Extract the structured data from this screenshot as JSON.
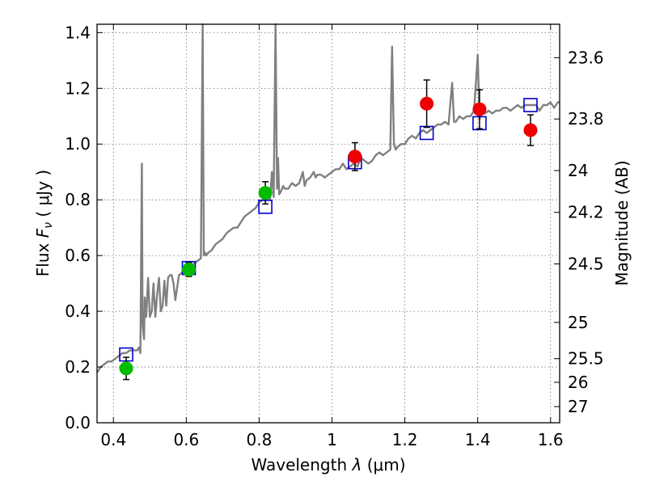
{
  "chart_data": {
    "type": "scatter",
    "xlabel": "Wavelength",
    "xlabel_symbol": "λ",
    "xlabel_unit": "(μm)",
    "ylabel": "Flux",
    "ylabel_symbol": "F",
    "ylabel_subscript": "ν",
    "ylabel_unit": "( μJy )",
    "y2label": "Magnitude (AB)",
    "xlim": [
      0.355,
      1.625
    ],
    "ylim": [
      0.0,
      1.43
    ],
    "x_ticks": [
      0.4,
      0.6,
      0.8,
      1.0,
      1.2,
      1.4,
      1.6
    ],
    "x_tick_labels": [
      "0.4",
      "0.6",
      "0.8",
      "1",
      "1.2",
      "1.4",
      "1.6"
    ],
    "y_ticks": [
      0.0,
      0.2,
      0.4,
      0.6,
      0.8,
      1.0,
      1.2,
      1.4
    ],
    "y_tick_labels": [
      "0.0",
      "0.2",
      "0.4",
      "0.6",
      "0.8",
      "1.0",
      "1.2",
      "1.4"
    ],
    "y2_ticks": [
      {
        "label": "23.6",
        "flux": 1.31
      },
      {
        "label": "23.8",
        "flux": 1.09
      },
      {
        "label": "24",
        "flux": 0.905
      },
      {
        "label": "24.2",
        "flux": 0.755
      },
      {
        "label": "24.5",
        "flux": 0.57
      },
      {
        "label": "25",
        "flux": 0.36
      },
      {
        "label": "25.5",
        "flux": 0.23
      },
      {
        "label": "26",
        "flux": 0.145
      },
      {
        "label": "27",
        "flux": 0.058
      }
    ],
    "grid": true,
    "colors": {
      "spectrum": "#808080",
      "model_box": "#0000cc",
      "green": "#00bb00",
      "red": "#ee0000",
      "error_bar": "#000000"
    },
    "series": [
      {
        "name": "Model spectrum",
        "type": "line",
        "x": [
          0.355,
          0.365,
          0.375,
          0.385,
          0.395,
          0.405,
          0.415,
          0.425,
          0.435,
          0.445,
          0.455,
          0.465,
          0.47,
          0.474,
          0.478,
          0.48,
          0.484,
          0.486,
          0.49,
          0.495,
          0.5,
          0.505,
          0.51,
          0.515,
          0.52,
          0.525,
          0.53,
          0.535,
          0.54,
          0.545,
          0.55,
          0.555,
          0.56,
          0.565,
          0.57,
          0.58,
          0.59,
          0.6,
          0.61,
          0.62,
          0.63,
          0.64,
          0.645,
          0.648,
          0.652,
          0.655,
          0.66,
          0.67,
          0.68,
          0.69,
          0.7,
          0.71,
          0.72,
          0.73,
          0.74,
          0.75,
          0.76,
          0.77,
          0.78,
          0.79,
          0.8,
          0.81,
          0.82,
          0.83,
          0.835,
          0.84,
          0.845,
          0.849,
          0.852,
          0.855,
          0.86,
          0.863,
          0.866,
          0.87,
          0.88,
          0.89,
          0.9,
          0.91,
          0.92,
          0.925,
          0.93,
          0.94,
          0.95,
          0.955,
          0.96,
          0.97,
          0.98,
          0.99,
          1.0,
          1.01,
          1.02,
          1.03,
          1.04,
          1.05,
          1.06,
          1.07,
          1.08,
          1.09,
          1.1,
          1.11,
          1.12,
          1.13,
          1.14,
          1.15,
          1.16,
          1.165,
          1.17,
          1.175,
          1.18,
          1.19,
          1.2,
          1.21,
          1.22,
          1.23,
          1.24,
          1.25,
          1.26,
          1.27,
          1.28,
          1.29,
          1.3,
          1.31,
          1.32,
          1.33,
          1.335,
          1.34,
          1.35,
          1.36,
          1.37,
          1.38,
          1.39,
          1.4,
          1.405,
          1.41,
          1.42,
          1.43,
          1.44,
          1.45,
          1.46,
          1.47,
          1.48,
          1.49,
          1.5,
          1.51,
          1.52,
          1.53,
          1.54,
          1.55,
          1.56,
          1.57,
          1.58,
          1.59,
          1.6,
          1.61,
          1.62,
          1.625
        ],
        "y": [
          0.18,
          0.2,
          0.21,
          0.22,
          0.22,
          0.23,
          0.24,
          0.25,
          0.25,
          0.26,
          0.26,
          0.26,
          0.27,
          0.25,
          0.93,
          0.35,
          0.3,
          0.45,
          0.38,
          0.52,
          0.38,
          0.4,
          0.5,
          0.38,
          0.46,
          0.52,
          0.4,
          0.42,
          0.51,
          0.42,
          0.52,
          0.53,
          0.53,
          0.5,
          0.44,
          0.53,
          0.54,
          0.56,
          0.56,
          0.57,
          0.58,
          0.59,
          1.43,
          0.6,
          0.61,
          0.6,
          0.61,
          0.62,
          0.64,
          0.65,
          0.66,
          0.68,
          0.69,
          0.7,
          0.7,
          0.72,
          0.74,
          0.75,
          0.76,
          0.77,
          0.79,
          0.8,
          0.81,
          0.8,
          0.9,
          0.81,
          1.43,
          0.84,
          0.95,
          0.82,
          0.83,
          0.84,
          0.85,
          0.84,
          0.84,
          0.86,
          0.85,
          0.86,
          0.9,
          0.85,
          0.87,
          0.88,
          0.9,
          0.88,
          0.89,
          0.89,
          0.88,
          0.89,
          0.9,
          0.91,
          0.91,
          0.93,
          0.91,
          0.92,
          0.93,
          0.92,
          0.95,
          0.94,
          0.93,
          0.94,
          0.96,
          0.97,
          0.96,
          0.97,
          0.98,
          1.35,
          1.0,
          0.98,
          0.99,
          1.0,
          1.0,
          1.02,
          1.03,
          1.02,
          1.04,
          1.05,
          1.04,
          1.05,
          1.06,
          1.07,
          1.07,
          1.08,
          1.07,
          1.22,
          1.08,
          1.08,
          1.1,
          1.09,
          1.1,
          1.1,
          1.12,
          1.32,
          1.09,
          1.12,
          1.11,
          1.12,
          1.11,
          1.12,
          1.12,
          1.13,
          1.13,
          1.12,
          1.13,
          1.14,
          1.13,
          1.14,
          1.14,
          1.14,
          1.14,
          1.12,
          1.14,
          1.14,
          1.15,
          1.13,
          1.15,
          1.15
        ]
      },
      {
        "name": "Model photometry (boxes)",
        "type": "scatter",
        "marker": "open-square",
        "x": [
          0.435,
          0.607,
          0.817,
          1.063,
          1.26,
          1.405,
          1.545
        ],
        "y": [
          0.245,
          0.555,
          0.775,
          0.935,
          1.04,
          1.075,
          1.14
        ]
      },
      {
        "name": "Observed (green)",
        "type": "scatter",
        "marker": "circle",
        "x": [
          0.435,
          0.607,
          0.817
        ],
        "y": [
          0.195,
          0.55,
          0.825
        ],
        "yerr": [
          0.04,
          0.025,
          0.04
        ]
      },
      {
        "name": "Observed (red)",
        "type": "scatter",
        "marker": "circle",
        "x": [
          1.063,
          1.26,
          1.405,
          1.545
        ],
        "y": [
          0.955,
          1.145,
          1.125,
          1.05
        ],
        "yerr": [
          0.05,
          0.085,
          0.07,
          0.055
        ]
      }
    ]
  }
}
